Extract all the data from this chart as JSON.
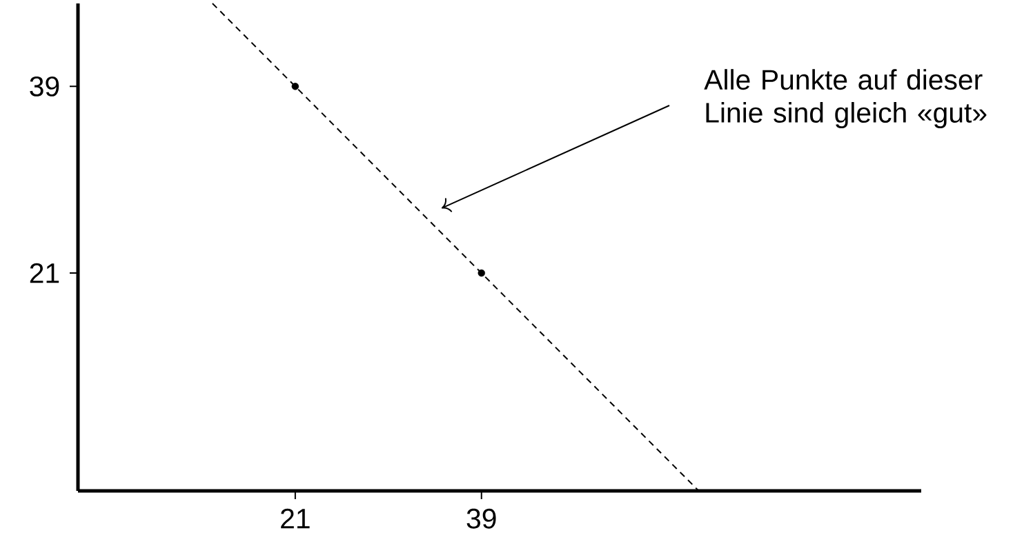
{
  "chart_data": {
    "type": "scatter",
    "xlim": [
      0,
      81.5
    ],
    "ylim": [
      0,
      47
    ],
    "xticks": [
      21,
      39
    ],
    "yticks": [
      21,
      39
    ],
    "series": [
      {
        "type": "line",
        "x": [
          13,
          60
        ],
        "values": [
          47,
          0
        ],
        "color": "#000000",
        "line_style": "dashed",
        "marker": "none"
      },
      {
        "type": "scatter",
        "x": [
          21,
          39
        ],
        "values": [
          39,
          21
        ],
        "color": "#000000",
        "marker": "circle"
      }
    ],
    "annotations": [
      "Alle Punkte auf dieser Linie sind gleich «gut»"
    ]
  }
}
